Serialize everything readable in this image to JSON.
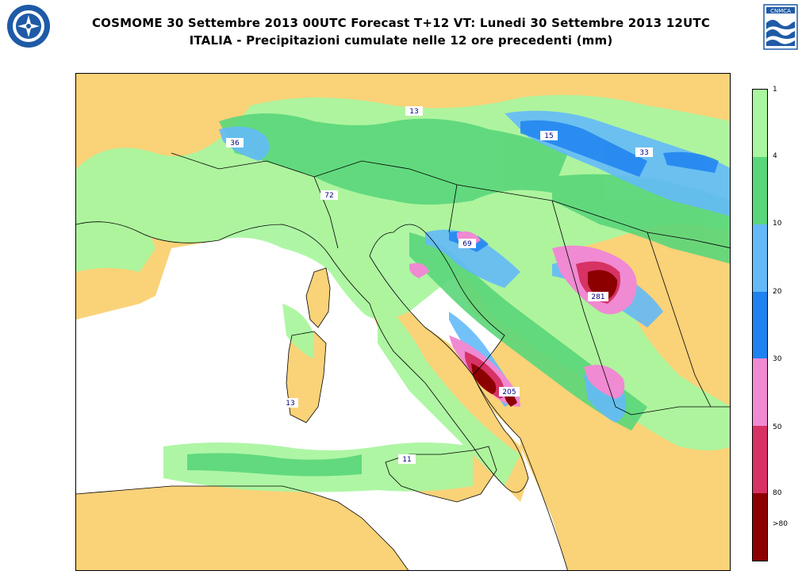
{
  "title": {
    "line1": "COSMOME 30 Settembre 2013 00UTC Forecast T+12 VT: Lunedi 30 Settembre 2013 12UTC",
    "line2": "ITALIA - Precipitazioni cumulate nelle 12 ore precedenti (mm)"
  },
  "logos": {
    "left_icon": "aeronautica-militare-emblem",
    "right_icon": "cnmca-wave-logo",
    "right_text": "CNMCA"
  },
  "legend": {
    "labels": [
      "1",
      "4",
      "10",
      "20",
      "30",
      "50",
      "80",
      ">80"
    ],
    "colors": [
      "#aaf6a0",
      "#5ad67a",
      "#64baf8",
      "#1e82f0",
      "#f08ad2",
      "#d73264",
      "#8c0000"
    ]
  },
  "map": {
    "land_color": "#fad278",
    "sea_color": "#ffffff",
    "labels": [
      {
        "id": "13-north",
        "value": "13"
      },
      {
        "id": "36",
        "value": "36"
      },
      {
        "id": "15",
        "value": "15"
      },
      {
        "id": "33",
        "value": "33"
      },
      {
        "id": "72",
        "value": "72"
      },
      {
        "id": "69",
        "value": "69"
      },
      {
        "id": "281",
        "value": "281"
      },
      {
        "id": "205",
        "value": "205"
      },
      {
        "id": "13-sardinia",
        "value": "13"
      },
      {
        "id": "11",
        "value": "11"
      }
    ]
  }
}
